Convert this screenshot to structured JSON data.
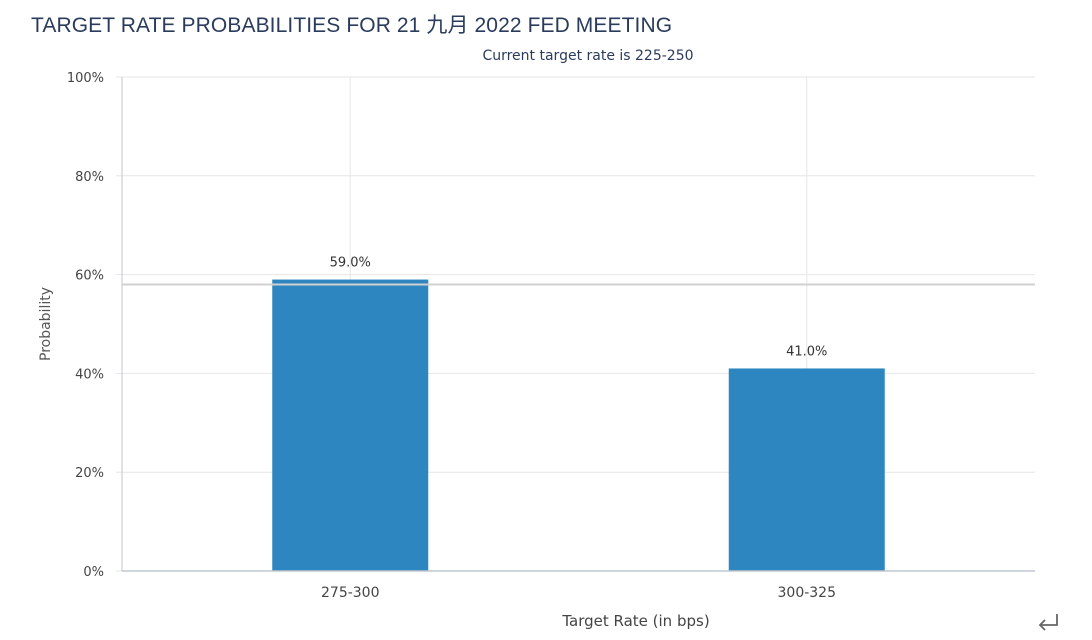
{
  "page": {
    "title": "TARGET RATE PROBABILITIES FOR 21 九月 2022 FED MEETING"
  },
  "chart_data": {
    "type": "bar",
    "subtitle": "Current target rate is 225-250",
    "categories": [
      "275-300",
      "300-325"
    ],
    "values": [
      59.0,
      41.0
    ],
    "data_labels": [
      "59.0%",
      "41.0%"
    ],
    "xlabel": "Target Rate (in bps)",
    "ylabel": "Probability",
    "ylim": [
      0,
      100
    ],
    "yticks": [
      0,
      20,
      40,
      60,
      80,
      100
    ],
    "ytick_labels": [
      "0%",
      "20%",
      "40%",
      "60%",
      "80%",
      "100%"
    ],
    "grid": true,
    "reference_line": 58,
    "colors": {
      "bar": "#2e86c1",
      "grid": "#e6e6e6",
      "axis": "#c0c6cf",
      "text": "#333333",
      "subtitle": "#2a3b5c",
      "title": "#2a3b5c"
    }
  },
  "icons": {
    "return": "return-arrow-icon"
  }
}
